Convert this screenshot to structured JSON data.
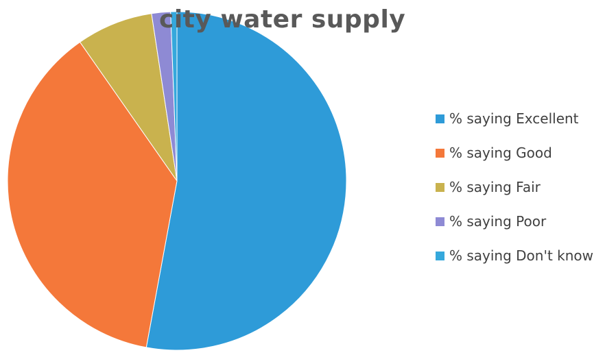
{
  "chart_data": {
    "type": "pie",
    "title": "city water supply",
    "categories": [
      "% saying Excellent",
      "% saying Good",
      "% saying Fair",
      "% saying Poor",
      "% saying Don't know"
    ],
    "values": [
      52.9,
      37.4,
      7.3,
      1.8,
      0.6
    ],
    "colors": [
      "#2E9BD8",
      "#F4783A",
      "#C9B24E",
      "#8E8AD4",
      "#35A8DC"
    ],
    "legend_position": "right",
    "start_angle": "12 o'clock",
    "direction": "clockwise"
  }
}
